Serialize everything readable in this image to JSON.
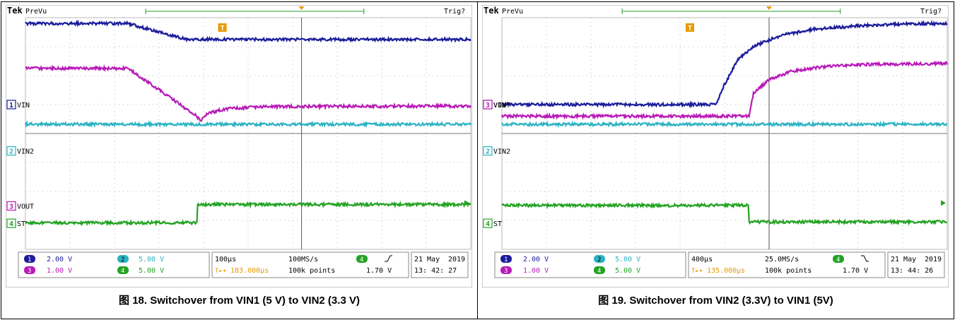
{
  "chart_data": [
    {
      "type": "line",
      "caption": "图 18. Switchover from VIN1 (5 V) to VIN2 (3.3 V)",
      "header": {
        "brand": "Tek",
        "mode": "PreVu",
        "status": "Trig?"
      },
      "x_divisions": 10,
      "y_divisions": 8,
      "trigger_x_div": 6.2,
      "channels": [
        {
          "id": 1,
          "name": "VIN",
          "color": "#1c1c9c",
          "marker_div": 3.0,
          "points": [
            [
              0,
              0.2
            ],
            [
              2.3,
              0.2
            ],
            [
              3.6,
              0.75
            ],
            [
              4.5,
              0.75
            ],
            [
              10,
              0.75
            ]
          ]
        },
        {
          "id": 3,
          "name": "VOUT",
          "color": "#b81ab8",
          "marker_div": 6.5,
          "points": [
            [
              0,
              1.75
            ],
            [
              2.3,
              1.75
            ],
            [
              3.8,
              3.35
            ],
            [
              3.95,
              3.55
            ],
            [
              4.1,
              3.3
            ],
            [
              4.5,
              3.15
            ],
            [
              5.3,
              3.07
            ],
            [
              10,
              3.05
            ]
          ]
        },
        {
          "id": 2,
          "name": "VIN2",
          "color": "#2cb3c3",
          "marker_div": 4.6,
          "points": [
            [
              0,
              3.68
            ],
            [
              10,
              3.68
            ]
          ]
        },
        {
          "id": 4,
          "name": "ST",
          "color": "#23a323",
          "marker_div": 7.1,
          "points": [
            [
              0,
              7.08
            ],
            [
              3.85,
              7.08
            ],
            [
              3.85,
              6.45
            ],
            [
              10,
              6.45
            ]
          ]
        }
      ],
      "readout": {
        "ch1": "2.00 V",
        "ch2": "5.00 V",
        "ch3": "1.00 V",
        "ch4": "5.00 V",
        "timebase": "100μs",
        "sample_rate": "100MS/s",
        "points": "100k points",
        "trigger_pos": "183.000μs",
        "trigger_level": "1.70 V",
        "date": "21 May",
        "year": "2019",
        "time": "13: 42: 27"
      }
    },
    {
      "type": "line",
      "caption": "图 19. Switchover from VIN2 (3.3V) to VIN1 (5V)",
      "header": {
        "brand": "Tek",
        "mode": "PreVu",
        "status": "Trig?"
      },
      "x_divisions": 10,
      "y_divisions": 8,
      "trigger_x_div": 6.0,
      "channels": [
        {
          "id": 1,
          "name": "VIN",
          "color": "#1c1c9c",
          "marker_div": 3.0,
          "points": [
            [
              0,
              3.0
            ],
            [
              4.8,
              3.0
            ],
            [
              5.0,
              2.3
            ],
            [
              5.3,
              1.45
            ],
            [
              5.7,
              0.95
            ],
            [
              6.3,
              0.6
            ],
            [
              7.0,
              0.4
            ],
            [
              8.0,
              0.28
            ],
            [
              9.0,
              0.22
            ],
            [
              10,
              0.2
            ]
          ]
        },
        {
          "id": 3,
          "name": "VOUT",
          "color": "#b81ab8",
          "marker_div": 3.0,
          "points": [
            [
              0,
              3.4
            ],
            [
              5.55,
              3.4
            ],
            [
              5.65,
              2.6
            ],
            [
              6.0,
              2.15
            ],
            [
              6.5,
              1.85
            ],
            [
              7.2,
              1.7
            ],
            [
              8.0,
              1.62
            ],
            [
              10,
              1.58
            ]
          ]
        },
        {
          "id": 2,
          "name": "VIN2",
          "color": "#2cb3c3",
          "marker_div": 4.6,
          "points": [
            [
              0,
              3.68
            ],
            [
              10,
              3.68
            ]
          ]
        },
        {
          "id": 4,
          "name": "ST",
          "color": "#23a323",
          "marker_div": 7.1,
          "points": [
            [
              0,
              6.48
            ],
            [
              5.55,
              6.48
            ],
            [
              5.55,
              7.05
            ],
            [
              10,
              7.05
            ]
          ]
        }
      ],
      "readout": {
        "ch1": "2.00 V",
        "ch2": "5.00 V",
        "ch3": "1.00 V",
        "ch4": "5.00 V",
        "timebase": "400μs",
        "sample_rate": "25.0MS/s",
        "points": "100k points",
        "trigger_pos": "135.000μs",
        "trigger_level": "1.70 V",
        "date": "21 May",
        "year": "2019",
        "time": "13: 44: 26"
      }
    }
  ]
}
